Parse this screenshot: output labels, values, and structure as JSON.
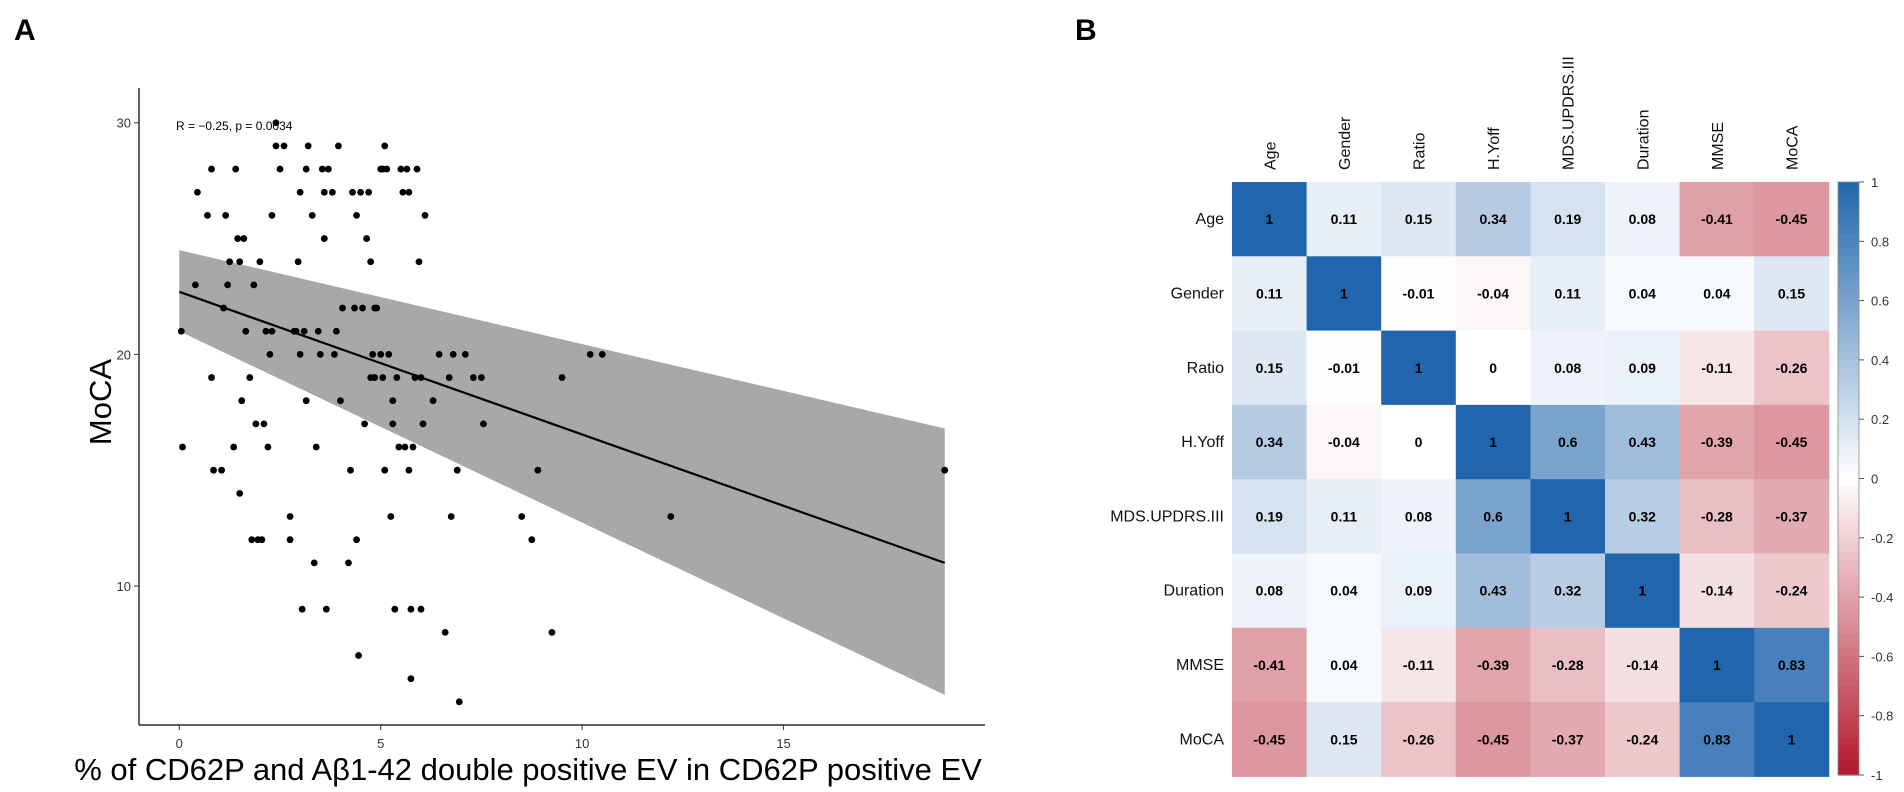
{
  "panels": {
    "a": "A",
    "b": "B"
  },
  "chart_data": [
    {
      "type": "scatter",
      "title": "",
      "xlabel": "% of CD62P and Aβ1-42 double positive EV in CD62P positive EV",
      "ylabel": "MoCA",
      "xlim": [
        -1,
        20
      ],
      "ylim": [
        4,
        31.5
      ],
      "xticks": [
        0,
        5,
        10,
        15
      ],
      "yticks": [
        10,
        20,
        30
      ],
      "annotation": "R = −0.25, p = 0.0034",
      "regression": {
        "x": [
          0,
          19
        ],
        "y": [
          22.7,
          11
        ],
        "ci_upper_at": [
          24.5,
          16.8
        ],
        "ci_lower_at": [
          21.0,
          5.3
        ]
      },
      "points": [
        [
          0.05,
          21
        ],
        [
          0.08,
          16
        ],
        [
          0.4,
          23
        ],
        [
          0.45,
          27
        ],
        [
          0.7,
          26
        ],
        [
          0.8,
          28
        ],
        [
          0.8,
          19
        ],
        [
          0.85,
          15
        ],
        [
          1.05,
          15
        ],
        [
          1.1,
          22
        ],
        [
          1.15,
          26
        ],
        [
          1.2,
          23
        ],
        [
          1.25,
          24
        ],
        [
          1.35,
          16
        ],
        [
          1.4,
          28
        ],
        [
          1.45,
          25
        ],
        [
          1.5,
          14
        ],
        [
          1.5,
          24
        ],
        [
          1.55,
          18
        ],
        [
          1.6,
          25
        ],
        [
          1.65,
          21
        ],
        [
          1.75,
          19
        ],
        [
          1.8,
          12
        ],
        [
          1.85,
          23
        ],
        [
          1.9,
          17
        ],
        [
          1.95,
          12
        ],
        [
          2.0,
          24
        ],
        [
          2.05,
          12
        ],
        [
          2.1,
          17
        ],
        [
          2.15,
          21
        ],
        [
          2.2,
          16
        ],
        [
          2.25,
          20
        ],
        [
          2.3,
          26
        ],
        [
          2.3,
          21
        ],
        [
          2.4,
          29
        ],
        [
          2.4,
          30
        ],
        [
          2.5,
          28
        ],
        [
          2.6,
          29
        ],
        [
          2.75,
          13
        ],
        [
          2.75,
          12
        ],
        [
          2.85,
          21
        ],
        [
          2.9,
          21
        ],
        [
          2.95,
          24
        ],
        [
          3.0,
          27
        ],
        [
          3.0,
          20
        ],
        [
          3.05,
          9
        ],
        [
          3.1,
          21
        ],
        [
          3.15,
          28
        ],
        [
          3.15,
          18
        ],
        [
          3.2,
          29
        ],
        [
          3.3,
          26
        ],
        [
          3.35,
          11
        ],
        [
          3.4,
          16
        ],
        [
          3.45,
          21
        ],
        [
          3.5,
          20
        ],
        [
          3.55,
          28
        ],
        [
          3.6,
          27
        ],
        [
          3.6,
          25
        ],
        [
          3.65,
          9
        ],
        [
          3.7,
          28
        ],
        [
          3.8,
          27
        ],
        [
          3.85,
          20
        ],
        [
          3.9,
          21
        ],
        [
          3.95,
          29
        ],
        [
          4.0,
          18
        ],
        [
          4.05,
          22
        ],
        [
          4.2,
          11
        ],
        [
          4.25,
          15
        ],
        [
          4.3,
          27
        ],
        [
          4.35,
          22
        ],
        [
          4.4,
          12
        ],
        [
          4.4,
          26
        ],
        [
          4.45,
          7
        ],
        [
          4.5,
          27
        ],
        [
          4.55,
          22
        ],
        [
          4.6,
          17
        ],
        [
          4.65,
          25
        ],
        [
          4.7,
          27
        ],
        [
          4.75,
          24
        ],
        [
          4.75,
          19
        ],
        [
          4.8,
          20
        ],
        [
          4.85,
          22
        ],
        [
          4.85,
          19
        ],
        [
          4.9,
          22
        ],
        [
          5.0,
          28
        ],
        [
          5.0,
          20
        ],
        [
          5.05,
          28
        ],
        [
          5.05,
          19
        ],
        [
          5.1,
          29
        ],
        [
          5.1,
          15
        ],
        [
          5.15,
          28
        ],
        [
          5.2,
          20
        ],
        [
          5.25,
          13
        ],
        [
          5.3,
          18
        ],
        [
          5.3,
          17
        ],
        [
          5.35,
          9
        ],
        [
          5.4,
          19
        ],
        [
          5.45,
          16
        ],
        [
          5.5,
          28
        ],
        [
          5.55,
          27
        ],
        [
          5.6,
          16
        ],
        [
          5.65,
          28
        ],
        [
          5.7,
          27
        ],
        [
          5.7,
          15
        ],
        [
          5.75,
          9
        ],
        [
          5.75,
          6
        ],
        [
          5.8,
          16
        ],
        [
          5.85,
          19
        ],
        [
          5.9,
          28
        ],
        [
          5.95,
          24
        ],
        [
          6.0,
          9
        ],
        [
          6.0,
          19
        ],
        [
          6.05,
          17
        ],
        [
          6.1,
          26
        ],
        [
          6.3,
          18
        ],
        [
          6.45,
          20
        ],
        [
          6.6,
          8
        ],
        [
          6.7,
          19
        ],
        [
          6.75,
          13
        ],
        [
          6.8,
          20
        ],
        [
          6.9,
          15
        ],
        [
          6.95,
          5
        ],
        [
          7.1,
          20
        ],
        [
          7.3,
          19
        ],
        [
          7.5,
          19
        ],
        [
          7.55,
          17
        ],
        [
          8.5,
          13
        ],
        [
          8.75,
          12
        ],
        [
          8.9,
          15
        ],
        [
          9.25,
          8
        ],
        [
          9.5,
          19
        ],
        [
          10.2,
          20
        ],
        [
          10.5,
          20
        ],
        [
          12.2,
          13
        ],
        [
          19.0,
          15
        ]
      ]
    },
    {
      "type": "heatmap",
      "title": "",
      "variables": [
        "Age",
        "Gender",
        "Ratio",
        "H.Yoff",
        "MDS.UPDRS.III",
        "Duration",
        "MMSE",
        "MoCA"
      ],
      "matrix": [
        [
          1,
          0.11,
          0.15,
          0.34,
          0.19,
          0.08,
          -0.41,
          -0.45
        ],
        [
          0.11,
          1,
          -0.01,
          -0.04,
          0.11,
          0.04,
          0.04,
          0.15
        ],
        [
          0.15,
          -0.01,
          1,
          0,
          0.08,
          0.09,
          -0.11,
          -0.26
        ],
        [
          0.34,
          -0.04,
          0,
          1,
          0.6,
          0.43,
          -0.39,
          -0.45
        ],
        [
          0.19,
          0.11,
          0.08,
          0.6,
          1,
          0.32,
          -0.28,
          -0.37
        ],
        [
          0.08,
          0.04,
          0.09,
          0.43,
          0.32,
          1,
          -0.14,
          -0.24
        ],
        [
          -0.41,
          0.04,
          -0.11,
          -0.39,
          -0.28,
          -0.14,
          1,
          0.83
        ],
        [
          -0.45,
          0.15,
          -0.26,
          -0.45,
          -0.37,
          -0.24,
          0.83,
          1
        ]
      ],
      "colorbar": {
        "range": [
          -1,
          1
        ],
        "ticks": [
          "1",
          "0.8",
          "0.6",
          "0.4",
          "0.2",
          "0",
          "-0.2",
          "-0.4",
          "-0.6",
          "-0.8",
          "-1"
        ],
        "colors": {
          "negative": "#b2182b",
          "neutral": "#ffffff",
          "positive": "#2166ac"
        }
      }
    }
  ]
}
